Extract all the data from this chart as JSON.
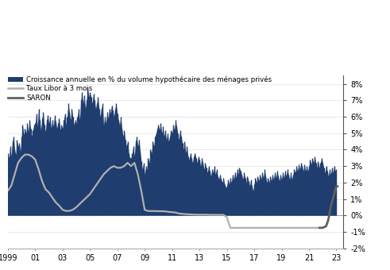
{
  "bar_color": "#1f3d6e",
  "libor_color": "#b0b0b0",
  "saron_color": "#606060",
  "legend_labels": [
    "Croissance annuelle en % du volume hypothécaire des ménages privés",
    "Taux Libor à 3 mois",
    "SARON"
  ],
  "xlim_start": 1999.0,
  "xlim_end": 2023.5,
  "ylim_min": -2.0,
  "ylim_max": 8.5,
  "yticks": [
    -2,
    -1,
    0,
    1,
    2,
    3,
    4,
    5,
    6,
    7,
    8
  ],
  "xtick_labels": [
    "1999",
    "01",
    "03",
    "05",
    "07",
    "09",
    "11",
    "13",
    "15",
    "17",
    "19",
    "21",
    "23"
  ],
  "xtick_positions": [
    1999,
    2001,
    2003,
    2005,
    2007,
    2009,
    2011,
    2013,
    2015,
    2017,
    2019,
    2021,
    2023
  ],
  "mortgage_years": [
    1999.0,
    1999.083,
    1999.167,
    1999.25,
    1999.333,
    1999.417,
    1999.5,
    1999.583,
    1999.667,
    1999.75,
    1999.833,
    1999.917,
    2000.0,
    2000.083,
    2000.167,
    2000.25,
    2000.333,
    2000.417,
    2000.5,
    2000.583,
    2000.667,
    2000.75,
    2000.833,
    2000.917,
    2001.0,
    2001.083,
    2001.167,
    2001.25,
    2001.333,
    2001.417,
    2001.5,
    2001.583,
    2001.667,
    2001.75,
    2001.833,
    2001.917,
    2002.0,
    2002.083,
    2002.167,
    2002.25,
    2002.333,
    2002.417,
    2002.5,
    2002.583,
    2002.667,
    2002.75,
    2002.833,
    2002.917,
    2003.0,
    2003.083,
    2003.167,
    2003.25,
    2003.333,
    2003.417,
    2003.5,
    2003.583,
    2003.667,
    2003.75,
    2003.833,
    2003.917,
    2004.0,
    2004.083,
    2004.167,
    2004.25,
    2004.333,
    2004.417,
    2004.5,
    2004.583,
    2004.667,
    2004.75,
    2004.833,
    2004.917,
    2005.0,
    2005.083,
    2005.167,
    2005.25,
    2005.333,
    2005.417,
    2005.5,
    2005.583,
    2005.667,
    2005.75,
    2005.833,
    2005.917,
    2006.0,
    2006.083,
    2006.167,
    2006.25,
    2006.333,
    2006.417,
    2006.5,
    2006.583,
    2006.667,
    2006.75,
    2006.833,
    2006.917,
    2007.0,
    2007.083,
    2007.167,
    2007.25,
    2007.333,
    2007.417,
    2007.5,
    2007.583,
    2007.667,
    2007.75,
    2007.833,
    2007.917,
    2008.0,
    2008.083,
    2008.167,
    2008.25,
    2008.333,
    2008.417,
    2008.5,
    2008.583,
    2008.667,
    2008.75,
    2008.833,
    2008.917,
    2009.0,
    2009.083,
    2009.167,
    2009.25,
    2009.333,
    2009.417,
    2009.5,
    2009.583,
    2009.667,
    2009.75,
    2009.833,
    2009.917,
    2010.0,
    2010.083,
    2010.167,
    2010.25,
    2010.333,
    2010.417,
    2010.5,
    2010.583,
    2010.667,
    2010.75,
    2010.833,
    2010.917,
    2011.0,
    2011.083,
    2011.167,
    2011.25,
    2011.333,
    2011.417,
    2011.5,
    2011.583,
    2011.667,
    2011.75,
    2011.833,
    2011.917,
    2012.0,
    2012.083,
    2012.167,
    2012.25,
    2012.333,
    2012.417,
    2012.5,
    2012.583,
    2012.667,
    2012.75,
    2012.833,
    2012.917,
    2013.0,
    2013.083,
    2013.167,
    2013.25,
    2013.333,
    2013.417,
    2013.5,
    2013.583,
    2013.667,
    2013.75,
    2013.833,
    2013.917,
    2014.0,
    2014.083,
    2014.167,
    2014.25,
    2014.333,
    2014.417,
    2014.5,
    2014.583,
    2014.667,
    2014.75,
    2014.833,
    2014.917,
    2015.0,
    2015.083,
    2015.167,
    2015.25,
    2015.333,
    2015.417,
    2015.5,
    2015.583,
    2015.667,
    2015.75,
    2015.833,
    2015.917,
    2016.0,
    2016.083,
    2016.167,
    2016.25,
    2016.333,
    2016.417,
    2016.5,
    2016.583,
    2016.667,
    2016.75,
    2016.833,
    2016.917,
    2017.0,
    2017.083,
    2017.167,
    2017.25,
    2017.333,
    2017.417,
    2017.5,
    2017.583,
    2017.667,
    2017.75,
    2017.833,
    2017.917,
    2018.0,
    2018.083,
    2018.167,
    2018.25,
    2018.333,
    2018.417,
    2018.5,
    2018.583,
    2018.667,
    2018.75,
    2018.833,
    2018.917,
    2019.0,
    2019.083,
    2019.167,
    2019.25,
    2019.333,
    2019.417,
    2019.5,
    2019.583,
    2019.667,
    2019.75,
    2019.833,
    2019.917,
    2020.0,
    2020.083,
    2020.167,
    2020.25,
    2020.333,
    2020.417,
    2020.5,
    2020.583,
    2020.667,
    2020.75,
    2020.833,
    2020.917,
    2021.0,
    2021.083,
    2021.167,
    2021.25,
    2021.333,
    2021.417,
    2021.5,
    2021.583,
    2021.667,
    2021.75,
    2021.833,
    2021.917,
    2022.0,
    2022.083,
    2022.167,
    2022.25,
    2022.333,
    2022.417,
    2022.5,
    2022.583,
    2022.667,
    2022.75,
    2022.833,
    2022.917,
    2023.0
  ],
  "mortgage_values": [
    3.8,
    3.5,
    4.2,
    3.6,
    4.5,
    4.8,
    4.0,
    3.7,
    4.6,
    4.2,
    4.4,
    3.9,
    4.8,
    5.5,
    4.9,
    5.3,
    5.0,
    5.6,
    5.1,
    5.8,
    5.3,
    4.8,
    5.2,
    5.5,
    5.6,
    6.2,
    5.4,
    6.5,
    5.8,
    5.2,
    5.9,
    6.3,
    5.5,
    5.1,
    5.8,
    6.1,
    5.6,
    6.0,
    5.3,
    5.8,
    5.4,
    6.1,
    5.7,
    5.3,
    5.6,
    5.9,
    5.2,
    5.5,
    5.3,
    5.8,
    6.2,
    5.5,
    6.0,
    6.8,
    6.3,
    5.8,
    6.5,
    6.0,
    5.5,
    5.8,
    5.6,
    6.0,
    6.5,
    5.8,
    7.0,
    7.5,
    6.8,
    7.3,
    6.5,
    7.0,
    7.8,
    7.2,
    7.5,
    7.2,
    6.8,
    7.4,
    7.0,
    6.5,
    6.8,
    7.2,
    6.5,
    6.0,
    6.5,
    6.8,
    5.5,
    6.0,
    5.6,
    6.3,
    5.9,
    6.5,
    6.2,
    6.7,
    6.4,
    6.0,
    6.5,
    6.8,
    6.2,
    5.8,
    5.5,
    6.0,
    5.3,
    4.8,
    5.2,
    4.6,
    4.2,
    4.5,
    3.8,
    3.5,
    3.5,
    3.8,
    4.2,
    3.6,
    4.5,
    4.8,
    4.2,
    4.6,
    3.9,
    3.3,
    2.8,
    3.2,
    2.5,
    3.0,
    2.8,
    3.5,
    3.2,
    4.0,
    3.8,
    4.5,
    4.2,
    4.8,
    5.0,
    5.3,
    5.5,
    5.2,
    5.6,
    5.0,
    5.4,
    4.8,
    5.2,
    4.6,
    5.0,
    4.5,
    4.8,
    5.2,
    5.0,
    5.5,
    5.2,
    5.8,
    5.4,
    5.0,
    4.6,
    5.2,
    4.8,
    4.4,
    4.0,
    4.5,
    3.8,
    4.2,
    3.6,
    3.4,
    3.8,
    3.5,
    3.2,
    3.6,
    3.8,
    3.5,
    3.2,
    3.6,
    3.4,
    3.0,
    3.5,
    3.2,
    2.8,
    3.2,
    2.9,
    2.6,
    3.0,
    2.7,
    2.4,
    2.8,
    2.6,
    3.0,
    2.5,
    2.8,
    2.4,
    2.2,
    2.5,
    2.2,
    2.0,
    2.3,
    1.9,
    1.7,
    1.8,
    2.2,
    1.9,
    2.3,
    2.0,
    2.5,
    2.2,
    2.6,
    2.3,
    2.8,
    2.5,
    2.9,
    2.7,
    2.5,
    2.2,
    2.6,
    2.3,
    2.0,
    2.4,
    2.1,
    1.8,
    2.2,
    1.8,
    1.5,
    1.9,
    2.3,
    2.0,
    2.4,
    2.1,
    2.5,
    2.2,
    2.6,
    2.3,
    2.8,
    2.4,
    2.0,
    2.3,
    2.0,
    2.4,
    2.1,
    2.5,
    2.2,
    2.6,
    2.3,
    2.7,
    2.4,
    2.1,
    2.5,
    2.2,
    2.6,
    2.3,
    2.7,
    2.4,
    2.8,
    2.5,
    2.2,
    2.6,
    2.2,
    2.5,
    2.8,
    2.6,
    3.0,
    2.7,
    3.1,
    2.8,
    3.2,
    3.0,
    2.7,
    3.1,
    2.7,
    3.0,
    2.7,
    3.0,
    3.4,
    3.1,
    3.5,
    3.2,
    3.6,
    3.2,
    2.9,
    3.3,
    2.9,
    3.2,
    3.5,
    3.2,
    2.9,
    2.6,
    3.0,
    2.7,
    2.4,
    2.8,
    2.5,
    2.9,
    2.6,
    3.0,
    2.7,
    2.8
  ],
  "libor_years": [
    1999.0,
    1999.25,
    1999.5,
    1999.75,
    2000.0,
    2000.25,
    2000.5,
    2000.75,
    2001.0,
    2001.25,
    2001.5,
    2001.75,
    2002.0,
    2002.25,
    2002.5,
    2002.75,
    2003.0,
    2003.25,
    2003.5,
    2003.75,
    2004.0,
    2004.25,
    2004.5,
    2004.75,
    2005.0,
    2005.25,
    2005.5,
    2005.75,
    2006.0,
    2006.25,
    2006.5,
    2006.75,
    2007.0,
    2007.25,
    2007.5,
    2007.75,
    2008.0,
    2008.25,
    2008.5,
    2008.75,
    2009.0,
    2009.25,
    2009.5,
    2009.75,
    2010.0,
    2010.25,
    2010.5,
    2010.75,
    2011.0,
    2011.25,
    2011.5,
    2011.75,
    2012.0,
    2012.25,
    2012.5,
    2012.75,
    2013.0,
    2013.25,
    2013.5,
    2013.75,
    2014.0,
    2014.25,
    2014.5,
    2014.75,
    2015.0,
    2015.25,
    2015.5,
    2015.75,
    2016.0,
    2016.25,
    2016.5,
    2016.75,
    2017.0,
    2017.25,
    2017.5,
    2017.75,
    2018.0,
    2018.25,
    2018.5,
    2018.75,
    2019.0,
    2019.25,
    2019.5,
    2019.75,
    2020.0,
    2020.25,
    2020.5,
    2020.75,
    2021.0,
    2021.25,
    2021.5,
    2021.75
  ],
  "libor_values": [
    1.5,
    1.8,
    2.5,
    3.2,
    3.5,
    3.7,
    3.7,
    3.6,
    3.4,
    2.8,
    2.1,
    1.6,
    1.4,
    1.1,
    0.8,
    0.6,
    0.35,
    0.28,
    0.28,
    0.35,
    0.5,
    0.7,
    0.9,
    1.1,
    1.3,
    1.6,
    1.9,
    2.2,
    2.5,
    2.7,
    2.9,
    3.0,
    2.9,
    2.9,
    3.0,
    3.2,
    3.0,
    3.2,
    2.5,
    1.5,
    0.35,
    0.27,
    0.27,
    0.27,
    0.26,
    0.26,
    0.25,
    0.22,
    0.2,
    0.18,
    0.12,
    0.1,
    0.08,
    0.07,
    0.06,
    0.05,
    0.05,
    0.05,
    0.05,
    0.04,
    0.04,
    0.04,
    0.04,
    0.04,
    -0.1,
    -0.75,
    -0.75,
    -0.75,
    -0.75,
    -0.75,
    -0.75,
    -0.75,
    -0.75,
    -0.75,
    -0.75,
    -0.75,
    -0.75,
    -0.75,
    -0.75,
    -0.75,
    -0.75,
    -0.75,
    -0.75,
    -0.75,
    -0.75,
    -0.75,
    -0.75,
    -0.75,
    -0.75,
    -0.75,
    -0.75,
    -0.75
  ],
  "saron_years": [
    2021.75,
    2022.0,
    2022.25,
    2022.4,
    2022.5,
    2022.6,
    2022.75,
    2022.9,
    2023.0,
    2023.1
  ],
  "saron_values": [
    -0.75,
    -0.75,
    -0.65,
    -0.3,
    0.1,
    0.6,
    1.0,
    1.5,
    1.75,
    1.78
  ]
}
